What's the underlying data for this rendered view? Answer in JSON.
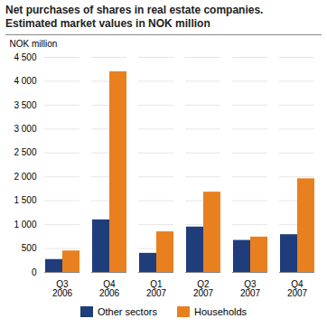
{
  "chart_data": {
    "type": "bar",
    "title": "Net purchases of shares in real estate companies.",
    "subtitle": "Estimated market values in NOK million",
    "ylabel": "NOK million",
    "categories": [
      "Q3\n2006",
      "Q4\n2006",
      "Q1\n2007",
      "Q2\n2007",
      "Q3\n2007",
      "Q4\n2007"
    ],
    "series": [
      {
        "name": "Other sectors",
        "color": "#1F3D7A",
        "values": [
          270,
          1100,
          400,
          950,
          670,
          790
        ]
      },
      {
        "name": "Households",
        "color": "#E88020",
        "values": [
          450,
          4200,
          850,
          1680,
          740,
          1960
        ]
      }
    ],
    "ylim": [
      0,
      4500
    ],
    "yticks": [
      0,
      500,
      {
        "value": 1000,
        "label": "1 000"
      },
      {
        "value": 1500,
        "label": "1 500"
      },
      {
        "value": 2000,
        "label": "2 000"
      },
      {
        "value": 2500,
        "label": "2 500"
      },
      {
        "value": 3000,
        "label": "3 000"
      },
      {
        "value": 3500,
        "label": "3 500"
      },
      {
        "value": 4000,
        "label": "4 000"
      },
      {
        "value": 4500,
        "label": "4 500"
      }
    ],
    "grid": true,
    "legend": "bottom"
  }
}
